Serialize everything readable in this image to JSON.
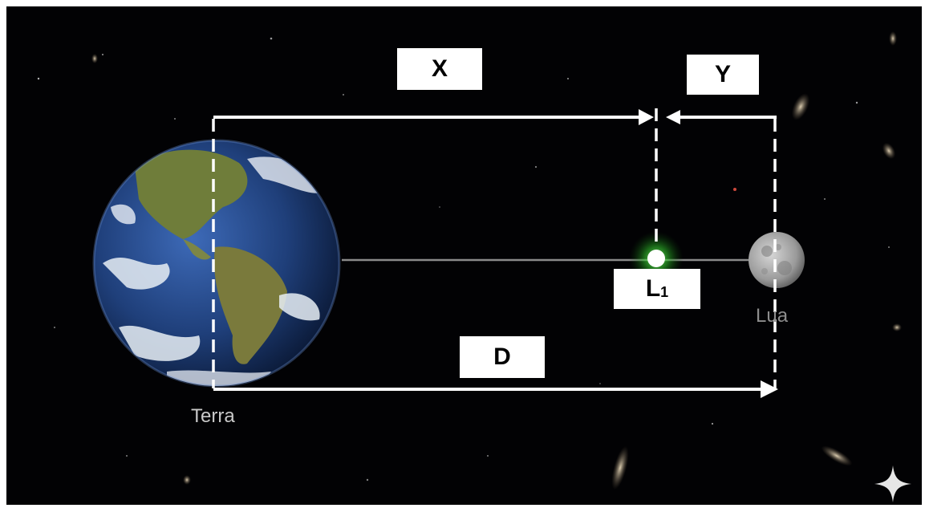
{
  "labels": {
    "x": "X",
    "y": "Y",
    "d": "D",
    "l1_letter": "L",
    "l1_sub": "1",
    "earth": "Terra",
    "moon": "Lua"
  },
  "colors": {
    "background": "#020204",
    "arrows": "#ffffff",
    "l1_glow": "#3cff3c",
    "axis_line": "#8a8a8a",
    "earth_ocean": "#1f3f7a",
    "earth_land": "#6f7d3a",
    "moon": "#a9a9a9"
  },
  "icons": {
    "corner": "sparkle-icon"
  }
}
